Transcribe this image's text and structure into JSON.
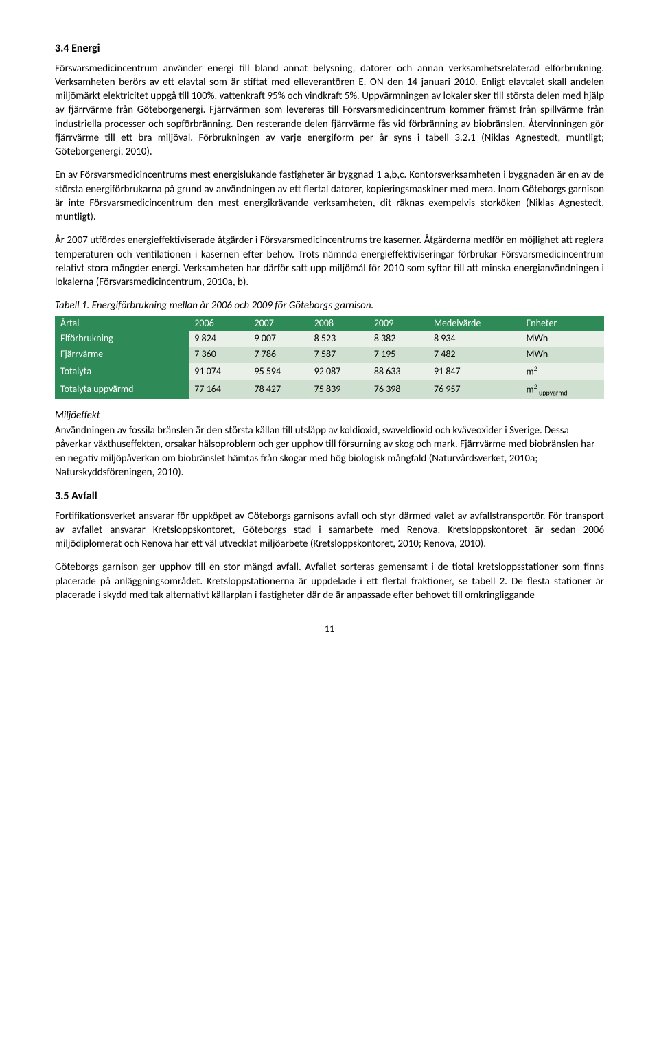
{
  "section34": {
    "heading": "3.4 Energi",
    "p1": "Försvarsmedicincentrum använder energi till bland annat belysning, datorer och annan verksamhetsrelaterad elförbrukning. Verksamheten berörs av ett elavtal som är stiftat med elleverantören E. ON den 14 januari 2010. Enligt elavtalet skall andelen miljömärkt elektricitet uppgå till 100%, vattenkraft 95% och vindkraft 5%. Uppvärmningen av lokaler sker till största delen med hjälp av fjärrvärme från Göteborgenergi. Fjärrvärmen som levereras till Försvarsmedicincentrum kommer främst från spillvärme från industriella processer och sopförbränning. Den resterande delen fjärrvärme fås vid förbränning av biobränslen. Återvinningen gör fjärrvärme till ett bra miljöval. Förbrukningen av varje energiform per år syns i tabell 3.2.1 (Niklas Agnestedt, muntligt; Göteborgenergi, 2010).",
    "p2": "En av Försvarsmedicincentrums mest energislukande fastigheter är byggnad 1 a,b,c. Kontorsverksamheten i byggnaden är en av de största energiförbrukarna på grund av användningen av ett flertal datorer, kopieringsmaskiner med mera. Inom Göteborgs garnison är inte Försvarsmedicincentrum den mest energikrävande verksamheten, dit räknas exempelvis storköken (Niklas Agnestedt, muntligt).",
    "p3": "År 2007 utfördes energieffektiviserade åtgärder i Försvarsmedicincentrums tre kaserner. Åtgärderna medför en möjlighet att reglera temperaturen och ventilationen i kasernen efter behov. Trots nämnda energieffektiviseringar förbrukar Försvarsmedicincentrum relativt stora mängder energi. Verksamheten har därför satt upp miljömål för 2010 som syftar till att minska energianvändningen i lokalerna (Försvarsmedicincentrum, 2010a, b)."
  },
  "table1": {
    "caption": "Tabell 1.  Energiförbrukning mellan år 2006  och 2009 för Göteborgs garnison.",
    "header_bg": "#2e8b57",
    "header_fg": "#ffffff",
    "row_alt_bg1": "#e8f0e8",
    "row_alt_bg2": "#d0e0d0",
    "columns": [
      "Årtal",
      "2006",
      "2007",
      "2008",
      "2009",
      "Medelvärde",
      "Enheter"
    ],
    "rows": [
      {
        "label": "Elförbrukning",
        "cells": [
          "9 824",
          "9 007",
          "8 523",
          "8 382",
          "8 934",
          "MWh"
        ]
      },
      {
        "label": "Fjärrvärme",
        "cells": [
          "7 360",
          "7 786",
          "7 587",
          "7 195",
          "7 482",
          "MWh"
        ]
      },
      {
        "label": "Totalyta",
        "cells": [
          "91 074",
          "95 594",
          "92 087",
          "88 633",
          "91 847"
        ],
        "unit_html": "m<sup class='sup'>2</sup>"
      },
      {
        "label": "Totalyta uppvärmd",
        "cells": [
          "77 164",
          "78 427",
          "75 839",
          "76 398",
          "76 957"
        ],
        "unit_html": "m<sup class='sup'>2</sup><span class='sub'> uppvärmd</span>"
      }
    ]
  },
  "miljoeffekt": {
    "heading": "Miljöeffekt",
    "p1": "Användningen av fossila bränslen är den största källan till utsläpp av koldioxid, svaveldioxid och kväveoxider i Sverige. Dessa påverkar växthuseffekten, orsakar hälsoproblem och ger upphov till försurning av skog och mark. Fjärrvärme med biobränslen har en negativ miljöpåverkan om biobränslet hämtas från skogar med hög biologisk mångfald (Naturvårdsverket, 2010a; Naturskyddsföreningen, 2010)."
  },
  "section35": {
    "heading": "3.5 Avfall",
    "p1": "Fortifikationsverket ansvarar för uppköpet av Göteborgs garnisons avfall och styr därmed valet av avfallstransportör. För transport av avfallet ansvarar Kretsloppskontoret, Göteborgs stad i samarbete med Renova. Kretsloppskontoret är sedan 2006 miljödiplomerat och Renova har ett väl utvecklat miljöarbete (Kretsloppskontoret, 2010; Renova, 2010).",
    "p2": "Göteborgs garnison ger upphov till en stor mängd avfall. Avfallet sorteras gemensamt i de tiotal kretsloppsstationer som finns placerade på anläggningsområdet. Kretsloppstationerna är uppdelade i ett flertal fraktioner, se tabell 2. De flesta stationer är placerade i skydd med tak alternativt källarplan i fastigheter där de är anpassade efter behovet till omkringliggande"
  },
  "pageNumber": "11"
}
